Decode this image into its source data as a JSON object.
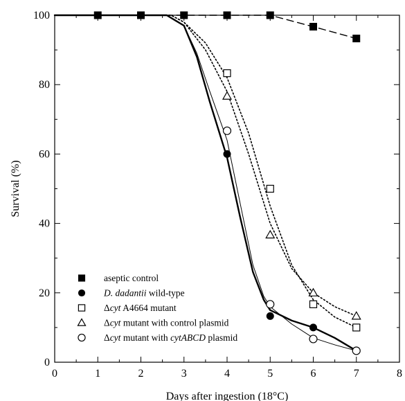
{
  "chart_data": {
    "type": "line",
    "xlabel": "Days after ingestion (18°C)",
    "ylabel": "Survival (%)",
    "xlim": [
      0,
      8
    ],
    "ylim": [
      0,
      100
    ],
    "x_ticks": [
      "0",
      "1",
      "2",
      "3",
      "4",
      "5",
      "6",
      "7",
      "8"
    ],
    "y_ticks": [
      "0",
      "20",
      "40",
      "60",
      "80",
      "100"
    ],
    "legend_position": "bottom-left",
    "grid": false,
    "series": [
      {
        "name": "aseptic control",
        "legend_parts": [
          {
            "text": "aseptic control",
            "italic": false
          }
        ],
        "marker": "filled-square",
        "line_style": "long-dash",
        "x": [
          1,
          2,
          3,
          4,
          5,
          6,
          7
        ],
        "y": [
          100,
          100,
          100,
          100,
          100,
          96.7,
          93.3
        ],
        "curve_x": [
          0,
          1,
          2,
          3,
          4,
          5,
          6,
          7
        ],
        "curve_y": [
          100,
          100,
          100,
          100,
          100,
          100,
          96.7,
          93.3
        ]
      },
      {
        "name": "D. dadantii wild-type",
        "legend_parts": [
          {
            "text": "D. dadantii",
            "italic": true
          },
          {
            "text": " wild-type",
            "italic": false
          }
        ],
        "marker": "filled-circle",
        "line_style": "thick-solid",
        "x": [
          4,
          5,
          6,
          7
        ],
        "y": [
          60,
          13.3,
          10,
          3.3
        ],
        "curve_x": [
          0,
          1,
          2,
          2.6,
          3,
          3.3,
          3.6,
          4,
          4.3,
          4.6,
          4.85,
          5,
          5.5,
          6,
          6.5,
          7
        ],
        "curve_y": [
          100,
          100,
          100,
          100,
          97,
          88,
          75,
          59,
          42,
          26,
          18,
          15,
          12,
          10,
          7,
          3.3
        ]
      },
      {
        "name": "Δcyt A4664 mutant",
        "legend_parts": [
          {
            "text": "Δ",
            "italic": false
          },
          {
            "text": "cyt",
            "italic": true
          },
          {
            "text": " A4664 mutant",
            "italic": false
          }
        ],
        "marker": "open-square",
        "line_style": "dotted",
        "x": [
          4,
          5,
          6,
          7
        ],
        "y": [
          83.3,
          50,
          16.7,
          10
        ],
        "curve_x": [
          0,
          1,
          2,
          2.7,
          3,
          3.5,
          4,
          4.5,
          5,
          5.5,
          6,
          6.5,
          7
        ],
        "curve_y": [
          100,
          100,
          100,
          100,
          98,
          92,
          82,
          66,
          45,
          28,
          18,
          13,
          10
        ]
      },
      {
        "name": "Δcyt mutant with control plasmid",
        "legend_parts": [
          {
            "text": "Δ",
            "italic": false
          },
          {
            "text": "cyt",
            "italic": true
          },
          {
            "text": " mutant with control plasmid",
            "italic": false
          }
        ],
        "marker": "open-triangle",
        "line_style": "dotted",
        "x": [
          4,
          5,
          6,
          7
        ],
        "y": [
          76.7,
          36.7,
          20,
          13.3
        ],
        "curve_x": [
          0,
          1,
          2,
          2.7,
          3,
          3.5,
          4,
          4.5,
          5,
          5.5,
          6,
          6.5,
          7
        ],
        "curve_y": [
          100,
          100,
          100,
          100,
          98,
          90,
          78,
          60,
          40,
          27,
          20,
          16,
          13.3
        ]
      },
      {
        "name": "Δcyt mutant with cytABCD plasmid",
        "legend_parts": [
          {
            "text": "Δ",
            "italic": false
          },
          {
            "text": "cyt",
            "italic": true
          },
          {
            "text": " mutant with ",
            "italic": false
          },
          {
            "text": "cytABCD",
            "italic": true
          },
          {
            "text": " plasmid",
            "italic": false
          }
        ],
        "marker": "open-circle",
        "line_style": "thin-solid",
        "x": [
          4,
          5,
          6,
          7
        ],
        "y": [
          66.7,
          16.7,
          6.7,
          3.3
        ],
        "curve_x": [
          0,
          1,
          2,
          2.6,
          3,
          3.3,
          3.6,
          4,
          4.3,
          4.6,
          4.85,
          5,
          5.5,
          6,
          6.5,
          7
        ],
        "curve_y": [
          100,
          100,
          100,
          100,
          97,
          89,
          78,
          64,
          46,
          28,
          19,
          16,
          11,
          7,
          5,
          3.3
        ]
      }
    ]
  }
}
